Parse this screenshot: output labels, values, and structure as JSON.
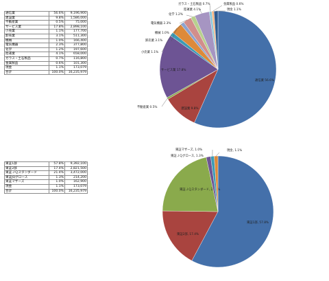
{
  "tables": {
    "sector": {
      "rows": [
        [
          "通信業",
          "56.6%",
          "9,196,900"
        ],
        [
          "建設業",
          "9.8%",
          "1,586,000"
        ],
        [
          "不動産業",
          "0.5%",
          "75,000"
        ],
        [
          "サービス業",
          "17.8%",
          "2,898,100"
        ],
        [
          "小売業",
          "1.1%",
          "177,700"
        ],
        [
          "卸売業",
          "3.1%",
          "511,300"
        ],
        [
          "機械",
          "1.0%",
          "166,400"
        ],
        [
          "電気機器",
          "2.3%",
          "377,800"
        ],
        [
          "化学",
          "1.2%",
          "197,600"
        ],
        [
          "陸運業",
          "4.1%",
          "658,000"
        ],
        [
          "ガラス・土石製品",
          "0.7%",
          "116,800"
        ],
        [
          "金属製品",
          "0.6%",
          "101,300"
        ],
        [
          "現金",
          "1.1%",
          "173,079"
        ]
      ],
      "total": [
        "合計",
        "100.0%",
        "16,235,979"
      ]
    },
    "market": {
      "rows": [
        [
          "東証1部",
          "57.8%",
          "9,392,100"
        ],
        [
          "東証2部",
          "17.4%",
          "2,821,500"
        ],
        [
          "東証ＪＱスタンダード",
          "21.4%",
          "3,472,000"
        ],
        [
          "東証JQグロース",
          "1.3%",
          "214,200"
        ],
        [
          "東証マザーズ",
          "1.0%",
          "162,900"
        ],
        [
          "現金",
          "1.1%",
          "173,079"
        ]
      ],
      "total": [
        "合計",
        "100.0%",
        "16,235,979"
      ]
    }
  },
  "chart_data": [
    {
      "type": "pie",
      "title": "",
      "start_angle_deg": 0,
      "direction": "clockwise",
      "slices": [
        {
          "label": "通信業",
          "value": 56.6,
          "text": "通信業 56.6%",
          "color": "#4470aa"
        },
        {
          "label": "建設業",
          "value": 9.8,
          "text": "建設業 9.8%",
          "color": "#a9443f"
        },
        {
          "label": "不動産業",
          "value": 0.5,
          "text": "不動産業 0.5%",
          "color": "#8aaa4c"
        },
        {
          "label": "サービス業",
          "value": 17.8,
          "text": "サービス業 17.8%",
          "color": "#6d5494"
        },
        {
          "label": "小売業",
          "value": 1.1,
          "text": "小売業 1.1%",
          "color": "#3d9bb5"
        },
        {
          "label": "卸売業",
          "value": 3.1,
          "text": "卸売業 3.1%",
          "color": "#dd8a3a"
        },
        {
          "label": "機械",
          "value": 1.0,
          "text": "機械 1.0%",
          "color": "#8ba3d0"
        },
        {
          "label": "電気機器",
          "value": 2.3,
          "text": "電気機器 2.3%",
          "color": "#d28e8c"
        },
        {
          "label": "化学",
          "value": 1.2,
          "text": "化学 1.2%",
          "color": "#b8d08e"
        },
        {
          "label": "陸運業",
          "value": 4.1,
          "text": "陸運業 4.1%",
          "color": "#a695c2"
        },
        {
          "label": "ガラス・土石製品",
          "value": 0.7,
          "text": "ガラス・土石製品 0.7%",
          "color": "#8bc7d8"
        },
        {
          "label": "金属製品",
          "value": 0.6,
          "text": "金属製品 0.6%",
          "color": "#f5b37e"
        },
        {
          "label": "現金",
          "value": 1.1,
          "text": "現金 1.1%",
          "color": "#2f5b8f"
        }
      ]
    },
    {
      "type": "pie",
      "title": "",
      "start_angle_deg": 0,
      "direction": "clockwise",
      "slices": [
        {
          "label": "東証1部",
          "value": 57.8,
          "text": "東証1部, 57.8%",
          "color": "#4470aa"
        },
        {
          "label": "東証2部",
          "value": 17.4,
          "text": "東証2部, 17.4%",
          "color": "#a9443f"
        },
        {
          "label": "東証ＪＱスタンダード",
          "value": 21.4,
          "text": "東証ＪＱスタンダード, 21.4%",
          "color": "#8aaa4c"
        },
        {
          "label": "東証JQグロース",
          "value": 1.3,
          "text": "東証ＪＱグロース, 1.3%",
          "color": "#6d5494"
        },
        {
          "label": "東証マザーズ",
          "value": 1.0,
          "text": "東証マザーズ, 1.0%",
          "color": "#3d9bb5"
        },
        {
          "label": "現金",
          "value": 1.1,
          "text": "現金, 1.1%",
          "color": "#dd8a3a"
        }
      ]
    }
  ]
}
